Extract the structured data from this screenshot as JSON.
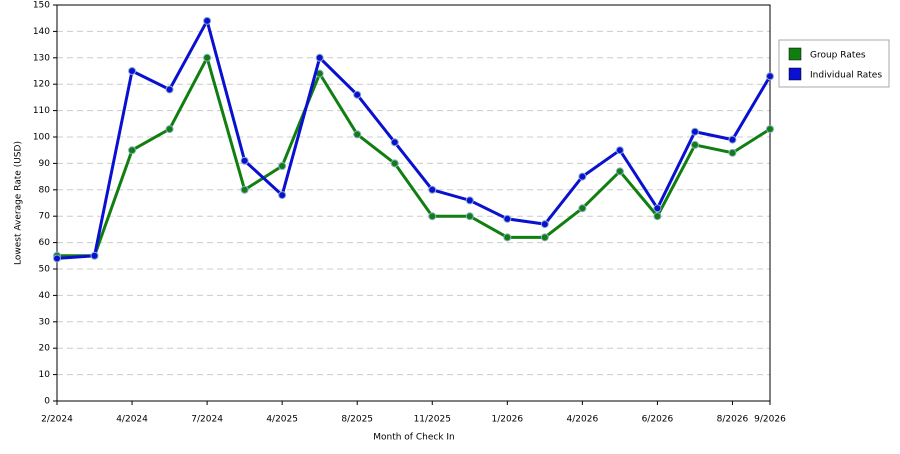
{
  "chart_data": {
    "type": "line",
    "y_label": "Lowest Average Rate (USD)",
    "x_label": "Month of Check In",
    "categories": [
      "2/2024",
      null,
      "4/2024",
      null,
      "7/2024",
      null,
      "4/2025",
      null,
      "8/2025",
      null,
      "11/2025",
      null,
      "1/2026",
      null,
      "4/2026",
      null,
      "6/2026",
      null,
      "8/2026",
      "9/2026"
    ],
    "series": [
      {
        "name": "Group Rates",
        "color": "#107f10",
        "values": [
          55,
          55,
          95,
          103,
          130,
          80,
          89,
          124,
          101,
          90,
          70,
          70,
          62,
          62,
          73,
          87,
          70,
          97,
          94,
          103
        ]
      },
      {
        "name": "Individual Rates",
        "color": "#0a10d0",
        "values": [
          54,
          55,
          125,
          118,
          144,
          91,
          78,
          130,
          116,
          98,
          80,
          76,
          69,
          67,
          85,
          95,
          73,
          102,
          99,
          123
        ]
      }
    ],
    "ylim": [
      0,
      150
    ],
    "yticks": [
      0,
      10,
      20,
      30,
      40,
      50,
      60,
      70,
      80,
      90,
      100,
      110,
      120,
      130,
      140,
      150
    ],
    "grid": true,
    "legend": "right"
  }
}
